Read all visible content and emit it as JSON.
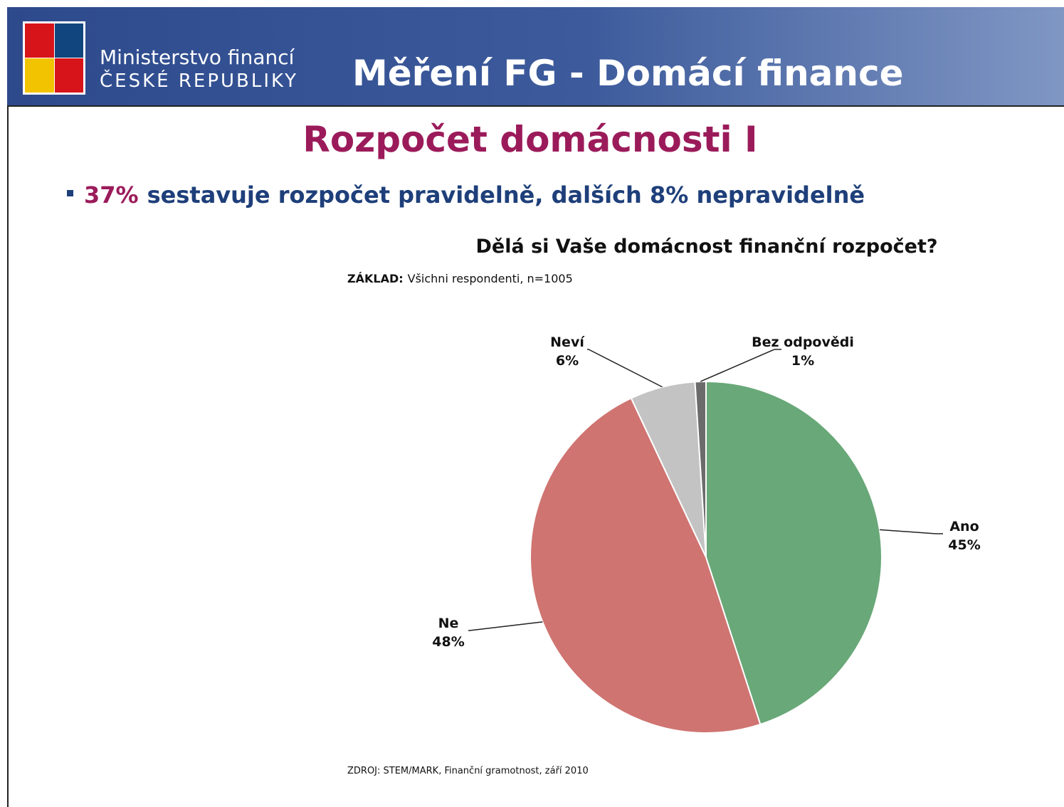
{
  "header": {
    "ministry_line1": "Ministerstvo financí",
    "ministry_line2": "ČESKÉ REPUBLIKY",
    "title": "Měření FG - Domácí finance"
  },
  "slide": {
    "title": "Rozpočet domácnosti I",
    "bullet_highlight": "37%",
    "bullet_text": "sestavuje rozpočet pravidelně, dalších 8% nepravidelně"
  },
  "chart_data": {
    "type": "pie",
    "title": "Dělá si Vaše domácnost finanční rozpočet?",
    "subtitle_label": "ZÁKLAD:",
    "subtitle": "Všichni respondenti, n=1005",
    "source": "ZDROJ: STEM/MARK, Finanční gramotnost, září 2010",
    "categories": [
      "Ano",
      "Ne",
      "Neví",
      "Bez odpovědi"
    ],
    "values": [
      45,
      48,
      6,
      1
    ],
    "value_labels": [
      "45%",
      "48%",
      "6%",
      "1%"
    ],
    "colors": [
      "#69a878",
      "#cf7471",
      "#c3c3c3",
      "#6b6b6b"
    ]
  }
}
